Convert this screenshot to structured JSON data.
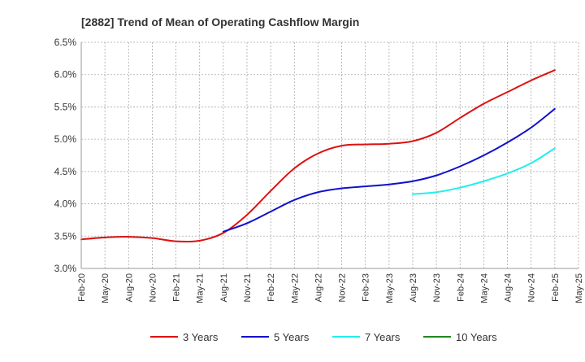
{
  "chart_data": {
    "type": "line",
    "title": "[2882]  Trend of Mean of Operating Cashflow Margin",
    "xlabel": "",
    "ylabel": "",
    "ylim": [
      3.0,
      6.5
    ],
    "y_ticks": [
      3.0,
      3.5,
      4.0,
      4.5,
      5.0,
      5.5,
      6.0,
      6.5
    ],
    "y_tick_labels": [
      "3.0%",
      "3.5%",
      "4.0%",
      "4.5%",
      "5.0%",
      "5.5%",
      "6.0%",
      "6.5%"
    ],
    "x_tick_labels": [
      "Feb-20",
      "May-20",
      "Aug-20",
      "Nov-20",
      "Feb-21",
      "May-21",
      "Aug-21",
      "Nov-21",
      "Feb-22",
      "May-22",
      "Aug-22",
      "Nov-22",
      "Feb-23",
      "May-23",
      "Aug-23",
      "Nov-23",
      "Feb-24",
      "May-24",
      "Aug-24",
      "Nov-24",
      "Feb-25",
      "May-25"
    ],
    "grid": true,
    "legend_position": "bottom",
    "series": [
      {
        "name": "3 Years",
        "color": "#dd1111",
        "start_index": 0,
        "values": [
          3.45,
          3.48,
          3.49,
          3.47,
          3.42,
          3.43,
          3.55,
          3.83,
          4.2,
          4.55,
          4.78,
          4.9,
          4.92,
          4.93,
          4.97,
          5.1,
          5.33,
          5.55,
          5.73,
          5.91,
          6.07
        ]
      },
      {
        "name": "5 Years",
        "color": "#1111cc",
        "start_index": 6,
        "values": [
          3.57,
          3.7,
          3.88,
          4.06,
          4.18,
          4.24,
          4.27,
          4.3,
          4.35,
          4.44,
          4.58,
          4.75,
          4.95,
          5.18,
          5.47
        ]
      },
      {
        "name": "7 Years",
        "color": "#22eeee",
        "start_index": 14,
        "values": [
          4.15,
          4.18,
          4.25,
          4.35,
          4.47,
          4.63,
          4.86
        ]
      },
      {
        "name": "10 Years",
        "color": "#228822",
        "start_index": 0,
        "values": []
      }
    ]
  }
}
